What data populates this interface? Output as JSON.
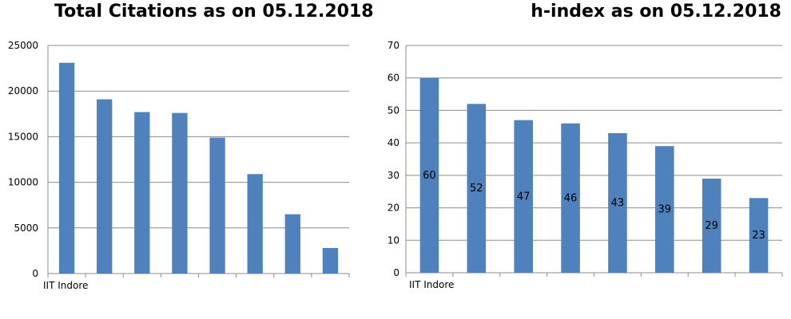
{
  "chart_data": [
    {
      "type": "bar",
      "title": "Total Citations as on  05.12.2018",
      "categories": [
        "IIT Indore",
        "",
        "",
        "",
        "",
        "",
        "",
        ""
      ],
      "values": [
        23100,
        19100,
        17700,
        17600,
        14900,
        10900,
        6500,
        2800
      ],
      "ylim": [
        0,
        25000
      ],
      "yticks": [
        0,
        5000,
        10000,
        15000,
        20000,
        25000
      ],
      "grid": true,
      "bar_color": "#4f81bd",
      "data_labels": false
    },
    {
      "type": "bar",
      "title": "h-index as on 05.12.2018",
      "categories": [
        "IIT Indore",
        "",
        "",
        "",
        "",
        "",
        "",
        ""
      ],
      "values": [
        60,
        52,
        47,
        46,
        43,
        39,
        29,
        23
      ],
      "ylim": [
        0,
        70
      ],
      "yticks": [
        0,
        10,
        20,
        30,
        40,
        50,
        60,
        70
      ],
      "grid": true,
      "bar_color": "#4f81bd",
      "data_labels": true
    }
  ]
}
